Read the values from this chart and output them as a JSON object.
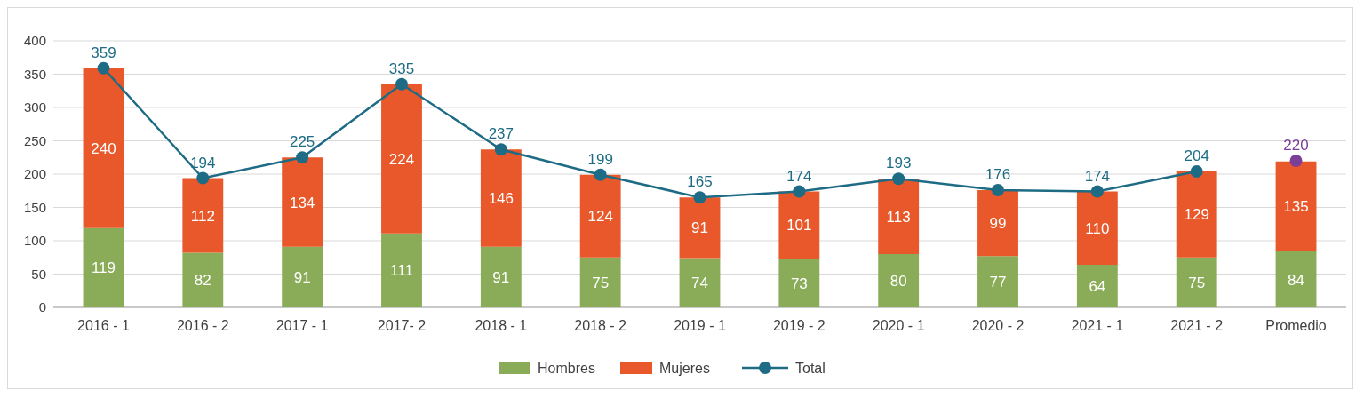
{
  "chart_data": {
    "type": "bar",
    "stacked": true,
    "categories": [
      "2016 - 1",
      "2016 - 2",
      "2017 - 1",
      "2017- 2",
      "2018 - 1",
      "2018 - 2",
      "2019 - 1",
      "2019 - 2",
      "2020 - 1",
      "2020 - 2",
      "2021 - 1",
      "2021 - 2",
      "Promedio"
    ],
    "series": [
      {
        "name": "Hombres",
        "color": "#8aac58",
        "values": [
          119,
          82,
          91,
          111,
          91,
          75,
          74,
          73,
          80,
          77,
          64,
          75,
          84
        ]
      },
      {
        "name": "Mujeres",
        "color": "#e8582a",
        "values": [
          240,
          112,
          134,
          224,
          146,
          124,
          91,
          101,
          113,
          99,
          110,
          129,
          135
        ]
      },
      {
        "name": "Total",
        "type": "line",
        "color": "#1d6b84",
        "values": [
          359,
          194,
          225,
          335,
          237,
          199,
          165,
          174,
          193,
          176,
          174,
          204,
          null
        ]
      },
      {
        "type": "scatter",
        "color": "#7b3f98",
        "x": [
          "Promedio"
        ],
        "values": [
          220
        ]
      }
    ],
    "ylim": [
      0,
      400
    ],
    "yticks": [
      0,
      50,
      100,
      150,
      200,
      250,
      300,
      350,
      400
    ],
    "grid": "y",
    "legend": "bottom",
    "marker": "circle",
    "data_labels": true
  }
}
